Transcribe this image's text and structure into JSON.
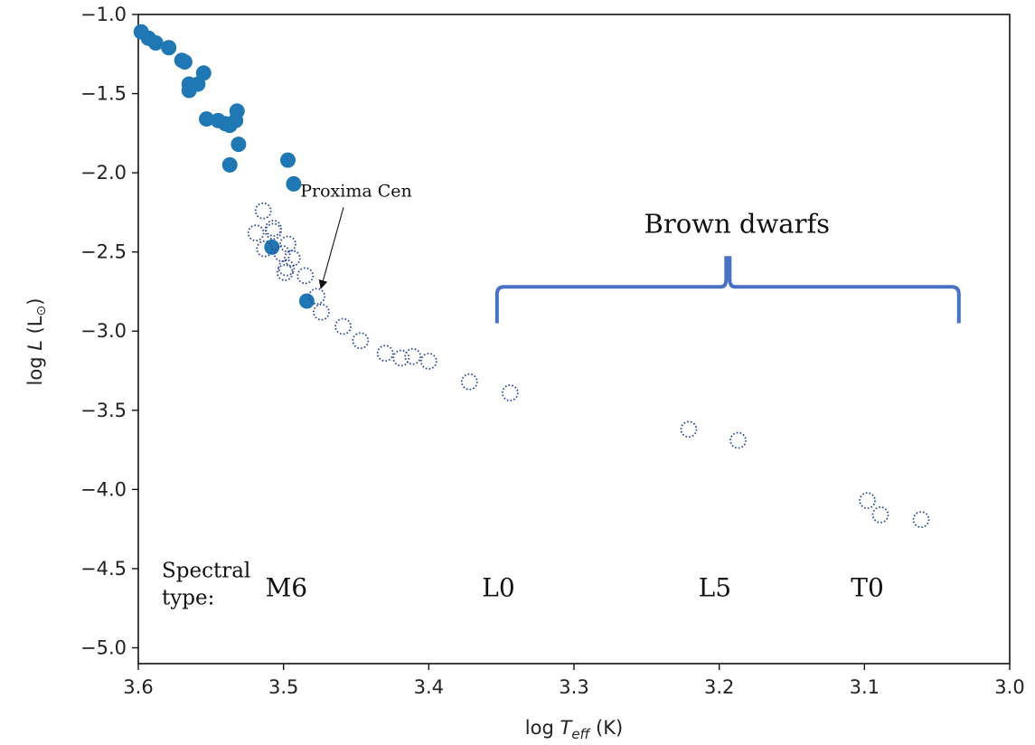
{
  "chart_data": {
    "type": "scatter",
    "title": "",
    "xlabel": {
      "prefix": "log ",
      "var": "T",
      "sub": "eff",
      "suffix": " (K)"
    },
    "ylabel": {
      "prefix": "log ",
      "var": "L",
      "suffix": " (L",
      "sym": "⊙",
      "close": ")"
    },
    "xlim": [
      3.6,
      3.0
    ],
    "ylim": [
      -5.1,
      -1.0
    ],
    "x_inverted": true,
    "x_ticks": [
      3.6,
      3.5,
      3.4,
      3.3,
      3.2,
      3.1,
      3.0
    ],
    "x_tick_labels": [
      "3.6",
      "3.5",
      "3.4",
      "3.3",
      "3.2",
      "3.1",
      "3.0"
    ],
    "y_ticks": [
      -1.0,
      -1.5,
      -2.0,
      -2.5,
      -3.0,
      -3.5,
      -4.0,
      -4.5,
      -5.0
    ],
    "y_tick_labels": [
      "−1.0",
      "−1.5",
      "−2.0",
      "−2.5",
      "−3.0",
      "−3.5",
      "−4.0",
      "−4.5",
      "−5.0"
    ],
    "grid": false,
    "colors": {
      "filled": "#1f77b4",
      "open": "#2c4a9a",
      "brace": "#4a72c4",
      "axes": "#111111"
    },
    "series": [
      {
        "name": "filled",
        "marker": "filled-circle",
        "points": [
          [
            3.598,
            -1.11
          ],
          [
            3.593,
            -1.15
          ],
          [
            3.588,
            -1.18
          ],
          [
            3.579,
            -1.21
          ],
          [
            3.57,
            -1.29
          ],
          [
            3.568,
            -1.3
          ],
          [
            3.565,
            -1.44
          ],
          [
            3.565,
            -1.48
          ],
          [
            3.559,
            -1.44
          ],
          [
            3.555,
            -1.37
          ],
          [
            3.553,
            -1.66
          ],
          [
            3.545,
            -1.67
          ],
          [
            3.54,
            -1.69
          ],
          [
            3.537,
            -1.7
          ],
          [
            3.533,
            -1.67
          ],
          [
            3.532,
            -1.61
          ],
          [
            3.531,
            -1.82
          ],
          [
            3.537,
            -1.95
          ],
          [
            3.497,
            -1.92
          ],
          [
            3.493,
            -2.07
          ],
          [
            3.508,
            -2.47
          ],
          [
            3.484,
            -2.81
          ]
        ]
      },
      {
        "name": "open",
        "marker": "dotted-open-circle",
        "points": [
          [
            3.514,
            -2.24
          ],
          [
            3.507,
            -2.35
          ],
          [
            3.519,
            -2.38
          ],
          [
            3.507,
            -2.37
          ],
          [
            3.497,
            -2.45
          ],
          [
            3.513,
            -2.48
          ],
          [
            3.501,
            -2.51
          ],
          [
            3.494,
            -2.54
          ],
          [
            3.498,
            -2.6
          ],
          [
            3.499,
            -2.63
          ],
          [
            3.485,
            -2.65
          ],
          [
            3.477,
            -2.78
          ],
          [
            3.474,
            -2.88
          ],
          [
            3.459,
            -2.97
          ],
          [
            3.447,
            -3.06
          ],
          [
            3.43,
            -3.14
          ],
          [
            3.419,
            -3.17
          ],
          [
            3.411,
            -3.16
          ],
          [
            3.4,
            -3.19
          ],
          [
            3.372,
            -3.32
          ],
          [
            3.344,
            -3.39
          ],
          [
            3.221,
            -3.62
          ],
          [
            3.187,
            -3.69
          ],
          [
            3.098,
            -4.07
          ],
          [
            3.089,
            -4.16
          ],
          [
            3.061,
            -4.19
          ]
        ]
      }
    ],
    "annotations": {
      "proxima": {
        "text": "Proxima Cen",
        "target": [
          3.478,
          -2.77
        ],
        "text_at": [
          3.45,
          -2.15
        ]
      },
      "brown_dwarfs": {
        "text": "Brown dwarfs",
        "x_range": [
          3.353,
          3.035
        ],
        "y_bottom": -2.95,
        "y_top": -2.72,
        "label_y": -2.38
      },
      "spectral_type": {
        "heading_line1": "Spectral",
        "heading_line2": "type:",
        "y": -4.6,
        "labels": [
          {
            "text": "M6",
            "x": 3.498
          },
          {
            "text": "L0",
            "x": 3.352
          },
          {
            "text": "L5",
            "x": 3.203
          },
          {
            "text": "T0",
            "x": 3.098
          }
        ]
      }
    }
  }
}
